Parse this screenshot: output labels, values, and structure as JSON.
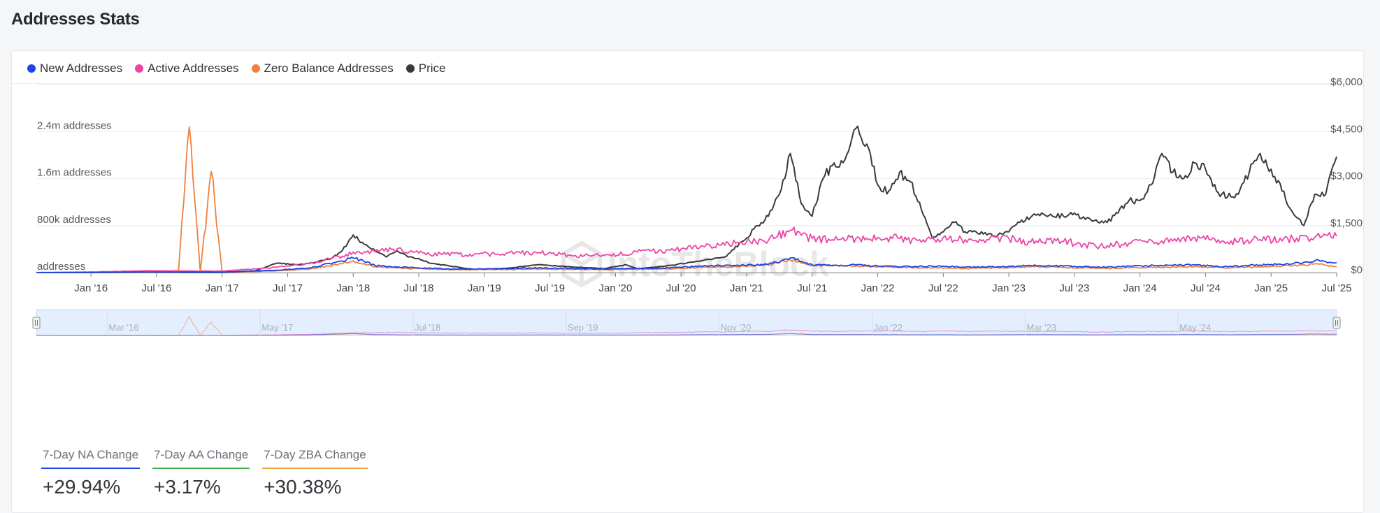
{
  "header": {
    "title": "Addresses Stats"
  },
  "legend": [
    {
      "label": "New Addresses",
      "color": "#1a44e8"
    },
    {
      "label": "Active Addresses",
      "color": "#ec45a6"
    },
    {
      "label": "Zero Balance Addresses",
      "color": "#f0803c"
    },
    {
      "label": "Price",
      "color": "#3a3a3a"
    }
  ],
  "watermark": "IntoTheBlock",
  "navigator": {
    "labels": [
      "Mar '16",
      "May '17",
      "Jul '18",
      "Sep '19",
      "Nov '20",
      "Jan '22",
      "Mar '23",
      "May '24"
    ]
  },
  "stats": [
    {
      "label": "7-Day NA Change",
      "value": "+29.94%",
      "color": "#1a44e8"
    },
    {
      "label": "7-Day AA Change",
      "value": "+3.17%",
      "color": "#3fb14a"
    },
    {
      "label": "7-Day ZBA Change",
      "value": "+30.38%",
      "color": "#f0a03c"
    }
  ],
  "chart_data": {
    "type": "line",
    "x_tick_labels": [
      "Jan '16",
      "Jul '16",
      "Jan '17",
      "Jul '17",
      "Jan '18",
      "Jul '18",
      "Jan '19",
      "Jul '19",
      "Jan '20",
      "Jul '20",
      "Jan '21",
      "Jul '21",
      "Jan '22",
      "Jul '22",
      "Jan '23",
      "Jul '23",
      "Jan '24",
      "Jul '24",
      "Jan '25",
      "Jul '25"
    ],
    "x_range": [
      "2015-08",
      "2025-07"
    ],
    "left_axis": {
      "tick_labels": [
        "addresses",
        "800k addresses",
        "1.6m addresses",
        "2.4m addresses"
      ],
      "ticks": [
        0,
        800000,
        1600000,
        2400000
      ],
      "range": [
        0,
        3200000
      ]
    },
    "right_axis": {
      "tick_labels": [
        "$0",
        "$1,500",
        "$3,000",
        "$4,500",
        "$6,000"
      ],
      "ticks": [
        0,
        1500,
        3000,
        4500,
        6000
      ],
      "range": [
        0,
        6000
      ]
    },
    "grid": true,
    "legend_position": "top-left",
    "series": [
      {
        "name": "Price",
        "axis": "right",
        "color": "#3a3a3a",
        "points": [
          [
            "2015-08",
            1
          ],
          [
            "2016-01",
            1
          ],
          [
            "2016-06",
            14
          ],
          [
            "2017-01",
            8
          ],
          [
            "2017-04",
            50
          ],
          [
            "2017-06",
            300
          ],
          [
            "2017-08",
            250
          ],
          [
            "2017-09",
            300
          ],
          [
            "2017-11",
            450
          ],
          [
            "2017-12",
            700
          ],
          [
            "2018-01",
            1200
          ],
          [
            "2018-02",
            900
          ],
          [
            "2018-03",
            700
          ],
          [
            "2018-04",
            500
          ],
          [
            "2018-05",
            700
          ],
          [
            "2018-06",
            500
          ],
          [
            "2018-07",
            450
          ],
          [
            "2018-08",
            300
          ],
          [
            "2018-10",
            200
          ],
          [
            "2018-12",
            100
          ],
          [
            "2019-03",
            135
          ],
          [
            "2019-06",
            250
          ],
          [
            "2019-09",
            180
          ],
          [
            "2019-12",
            130
          ],
          [
            "2020-02",
            250
          ],
          [
            "2020-03",
            120
          ],
          [
            "2020-06",
            230
          ],
          [
            "2020-09",
            380
          ],
          [
            "2020-11",
            500
          ],
          [
            "2021-01",
            1100
          ],
          [
            "2021-02",
            1500
          ],
          [
            "2021-03",
            1800
          ],
          [
            "2021-04",
            2500
          ],
          [
            "2021-05",
            3800
          ],
          [
            "2021-06",
            2200
          ],
          [
            "2021-07",
            1800
          ],
          [
            "2021-08",
            3000
          ],
          [
            "2021-09",
            3500
          ],
          [
            "2021-10",
            3600
          ],
          [
            "2021-11",
            4600
          ],
          [
            "2021-12",
            4100
          ],
          [
            "2022-01",
            2800
          ],
          [
            "2022-02",
            2600
          ],
          [
            "2022-03",
            3200
          ],
          [
            "2022-04",
            2900
          ],
          [
            "2022-05",
            2000
          ],
          [
            "2022-06",
            1100
          ],
          [
            "2022-07",
            1300
          ],
          [
            "2022-08",
            1600
          ],
          [
            "2022-09",
            1300
          ],
          [
            "2022-10",
            1300
          ],
          [
            "2022-11",
            1200
          ],
          [
            "2022-12",
            1200
          ],
          [
            "2023-01",
            1300
          ],
          [
            "2023-02",
            1600
          ],
          [
            "2023-04",
            1900
          ],
          [
            "2023-05",
            1800
          ],
          [
            "2023-06",
            1800
          ],
          [
            "2023-07",
            1900
          ],
          [
            "2023-08",
            1700
          ],
          [
            "2023-10",
            1600
          ],
          [
            "2023-11",
            1900
          ],
          [
            "2023-12",
            2300
          ],
          [
            "2024-01",
            2300
          ],
          [
            "2024-02",
            2800
          ],
          [
            "2024-03",
            3800
          ],
          [
            "2024-04",
            3200
          ],
          [
            "2024-05",
            3000
          ],
          [
            "2024-06",
            3500
          ],
          [
            "2024-07",
            3300
          ],
          [
            "2024-08",
            2600
          ],
          [
            "2024-09",
            2400
          ],
          [
            "2024-10",
            2500
          ],
          [
            "2024-11",
            3200
          ],
          [
            "2024-12",
            3800
          ],
          [
            "2025-01",
            3300
          ],
          [
            "2025-02",
            2600
          ],
          [
            "2025-03",
            1900
          ],
          [
            "2025-04",
            1500
          ],
          [
            "2025-05",
            2500
          ],
          [
            "2025-06",
            2500
          ],
          [
            "2025-07",
            3700
          ]
        ]
      },
      {
        "name": "Active Addresses",
        "axis": "left",
        "color": "#ec45a6",
        "points": [
          [
            "2015-08",
            2000
          ],
          [
            "2016-01",
            10000
          ],
          [
            "2016-06",
            30000
          ],
          [
            "2017-01",
            25000
          ],
          [
            "2017-06",
            90000
          ],
          [
            "2017-09",
            150000
          ],
          [
            "2017-12",
            280000
          ],
          [
            "2018-01",
            350000
          ],
          [
            "2018-03",
            350000
          ],
          [
            "2018-05",
            400000
          ],
          [
            "2018-07",
            330000
          ],
          [
            "2018-09",
            320000
          ],
          [
            "2018-12",
            300000
          ],
          [
            "2019-03",
            330000
          ],
          [
            "2019-06",
            340000
          ],
          [
            "2019-09",
            290000
          ],
          [
            "2019-12",
            290000
          ],
          [
            "2020-03",
            350000
          ],
          [
            "2020-06",
            380000
          ],
          [
            "2020-09",
            450000
          ],
          [
            "2020-12",
            500000
          ],
          [
            "2021-03",
            550000
          ],
          [
            "2021-05",
            720000
          ],
          [
            "2021-07",
            580000
          ],
          [
            "2021-09",
            550000
          ],
          [
            "2021-11",
            580000
          ],
          [
            "2022-01",
            600000
          ],
          [
            "2022-03",
            580000
          ],
          [
            "2022-05",
            520000
          ],
          [
            "2022-07",
            600000
          ],
          [
            "2022-09",
            560000
          ],
          [
            "2022-11",
            560000
          ],
          [
            "2023-01",
            580000
          ],
          [
            "2023-03",
            520000
          ],
          [
            "2023-06",
            530000
          ],
          [
            "2023-09",
            440000
          ],
          [
            "2023-12",
            500000
          ],
          [
            "2024-03",
            540000
          ],
          [
            "2024-06",
            600000
          ],
          [
            "2024-09",
            520000
          ],
          [
            "2024-12",
            560000
          ],
          [
            "2025-03",
            580000
          ],
          [
            "2025-05",
            600000
          ],
          [
            "2025-07",
            620000
          ]
        ]
      },
      {
        "name": "New Addresses",
        "axis": "left",
        "color": "#1a44e8",
        "points": [
          [
            "2015-08",
            1000
          ],
          [
            "2016-01",
            3000
          ],
          [
            "2016-06",
            10000
          ],
          [
            "2017-01",
            8000
          ],
          [
            "2017-06",
            40000
          ],
          [
            "2017-09",
            80000
          ],
          [
            "2017-12",
            200000
          ],
          [
            "2018-01",
            250000
          ],
          [
            "2018-03",
            120000
          ],
          [
            "2018-05",
            90000
          ],
          [
            "2018-07",
            80000
          ],
          [
            "2018-10",
            60000
          ],
          [
            "2019-01",
            60000
          ],
          [
            "2019-06",
            80000
          ],
          [
            "2019-09",
            70000
          ],
          [
            "2019-12",
            60000
          ],
          [
            "2020-03",
            70000
          ],
          [
            "2020-06",
            80000
          ],
          [
            "2020-09",
            110000
          ],
          [
            "2020-12",
            120000
          ],
          [
            "2021-03",
            140000
          ],
          [
            "2021-05",
            250000
          ],
          [
            "2021-07",
            130000
          ],
          [
            "2021-09",
            120000
          ],
          [
            "2021-11",
            130000
          ],
          [
            "2022-01",
            110000
          ],
          [
            "2022-04",
            100000
          ],
          [
            "2022-07",
            110000
          ],
          [
            "2022-09",
            90000
          ],
          [
            "2022-12",
            100000
          ],
          [
            "2023-03",
            120000
          ],
          [
            "2023-06",
            110000
          ],
          [
            "2023-09",
            90000
          ],
          [
            "2023-12",
            110000
          ],
          [
            "2024-03",
            120000
          ],
          [
            "2024-06",
            130000
          ],
          [
            "2024-09",
            100000
          ],
          [
            "2024-12",
            130000
          ],
          [
            "2025-03",
            150000
          ],
          [
            "2025-05",
            200000
          ],
          [
            "2025-07",
            170000
          ]
        ]
      },
      {
        "name": "Zero Balance Addresses",
        "axis": "left",
        "color": "#f0803c",
        "points": [
          [
            "2015-08",
            500
          ],
          [
            "2016-01",
            2000
          ],
          [
            "2016-06",
            5000
          ],
          [
            "2016-09",
            5000
          ],
          [
            "2016-10",
            2480000
          ],
          [
            "2016-11",
            5000
          ],
          [
            "2016-12",
            1720000
          ],
          [
            "2017-01",
            5000
          ],
          [
            "2017-06",
            30000
          ],
          [
            "2017-09",
            60000
          ],
          [
            "2017-12",
            150000
          ],
          [
            "2018-01",
            200000
          ],
          [
            "2018-03",
            100000
          ],
          [
            "2018-06",
            70000
          ],
          [
            "2018-10",
            50000
          ],
          [
            "2019-01",
            50000
          ],
          [
            "2019-06",
            60000
          ],
          [
            "2019-12",
            50000
          ],
          [
            "2020-06",
            60000
          ],
          [
            "2020-09",
            90000
          ],
          [
            "2020-12",
            100000
          ],
          [
            "2021-03",
            130000
          ],
          [
            "2021-05",
            220000
          ],
          [
            "2021-07",
            120000
          ],
          [
            "2021-11",
            110000
          ],
          [
            "2022-03",
            90000
          ],
          [
            "2022-06",
            80000
          ],
          [
            "2022-09",
            70000
          ],
          [
            "2022-12",
            80000
          ],
          [
            "2023-03",
            100000
          ],
          [
            "2023-06",
            90000
          ],
          [
            "2023-09",
            70000
          ],
          [
            "2023-12",
            80000
          ],
          [
            "2024-03",
            90000
          ],
          [
            "2024-06",
            100000
          ],
          [
            "2024-09",
            80000
          ],
          [
            "2024-12",
            100000
          ],
          [
            "2025-03",
            120000
          ],
          [
            "2025-05",
            150000
          ],
          [
            "2025-07",
            100000
          ]
        ]
      }
    ]
  }
}
